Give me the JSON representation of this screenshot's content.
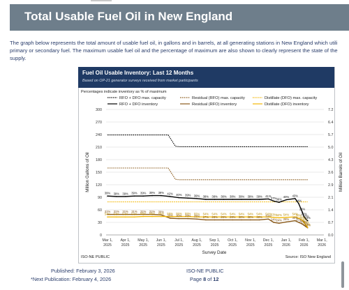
{
  "page": {
    "title": "Total Usable Fuel Oil in New England",
    "description_lines": [
      "The graph below represents the total amount of usable fuel oil, in gallons and in barrels, at all generating stations in New England which utili",
      "primary or secondary fuel. The maximum usable fuel oil and the percentage of maximum are also shown to clearly represent the state of the",
      "supply."
    ],
    "footer": {
      "published_label": "Published:",
      "published_date": "February 3, 2026",
      "next_label": "*Next Publication:",
      "next_date": "February 4, 2026",
      "center_line1": "ISO-NE PUBLIC",
      "center_line2_prefix": "Page ",
      "page_number": "8",
      "center_line2_mid": " of ",
      "page_total": "12"
    }
  },
  "colors": {
    "banner": "#6e7e8b",
    "chart_header": "#1f3a64",
    "text_blue": "#2a3d6b",
    "rfo_dfo": "#000000",
    "residual": "#8a5a1a",
    "distillate": "#f2b705"
  },
  "chart_data": {
    "type": "line",
    "title": "Fuel Oil Usable Inventory: Last 12 Months",
    "subtitle": "Based on OP-21 generator surveys received from market participants",
    "note": "Percentages indicate inventory as % of maximum",
    "xlabel": "Survey Date",
    "ylabel": "Million Gallons of Oil",
    "y2label": "Million Barrels of Oil",
    "ylim": [
      0,
      300
    ],
    "y2lim": [
      0.0,
      7.2
    ],
    "yticks": [
      "0",
      "30",
      "60",
      "90",
      "120",
      "150",
      "180",
      "210",
      "240",
      "270",
      "300"
    ],
    "y2ticks": [
      "0.0",
      "0.7",
      "1.4",
      "2.1",
      "2.9",
      "3.6",
      "4.3",
      "5.0",
      "5.7",
      "6.4",
      "7.2"
    ],
    "xticks": [
      [
        "Mar 1,",
        "2025"
      ],
      [
        "Apr 1,",
        "2025"
      ],
      [
        "May 1,",
        "2025"
      ],
      [
        "Jun 1,",
        "2025"
      ],
      [
        "Jul 1,",
        "2025"
      ],
      [
        "Aug 1,",
        "2025"
      ],
      [
        "Sep 1,",
        "2025"
      ],
      [
        "Oct 1,",
        "2025"
      ],
      [
        "Nov 1,",
        "2025"
      ],
      [
        "Dec 1,",
        "2025"
      ],
      [
        "Jan 1,",
        "2026"
      ],
      [
        "Feb 1,",
        "2026"
      ],
      [
        "Mar 1,",
        "2026"
      ]
    ],
    "legend": [
      {
        "name": "RFO + DFO max. capacity",
        "color": "#000000",
        "dash": true
      },
      {
        "name": "Residual (RFO) max. capacity",
        "color": "#8a5a1a",
        "dash": true
      },
      {
        "name": "Distillate (DFO) max. capacity",
        "color": "#f2b705",
        "dash": true
      },
      {
        "name": "RFO + DFO inventory",
        "color": "#000000",
        "dash": false
      },
      {
        "name": "Residual (RFO) inventory",
        "color": "#8a5a1a",
        "dash": false
      },
      {
        "name": "Distillate (DFO) inventory",
        "color": "#f2b705",
        "dash": false
      }
    ],
    "legend_position": "top",
    "footer_left": "ISO-NE PUBLIC",
    "source": "Source: ISO New England",
    "series": [
      {
        "name": "RFO + DFO max. capacity",
        "color": "#000000",
        "dash": true,
        "x": [
          0,
          1,
          2,
          3,
          3.4,
          3.8,
          4,
          5,
          6,
          7,
          8,
          9,
          10,
          11,
          11.2
        ],
        "y": [
          239,
          239,
          239,
          239,
          239,
          212,
          211,
          211,
          211,
          211,
          211,
          211,
          211,
          211,
          211
        ]
      },
      {
        "name": "Residual (RFO) max. capacity",
        "color": "#8a5a1a",
        "dash": true,
        "x": [
          0,
          1,
          2,
          3,
          3.4,
          3.8,
          4,
          5,
          6,
          7,
          8,
          9,
          10,
          11,
          11.2
        ],
        "y": [
          160,
          160,
          160,
          160,
          160,
          133,
          132,
          132,
          132,
          132,
          132,
          132,
          132,
          132,
          132
        ]
      },
      {
        "name": "Distillate (DFO) max. capacity",
        "color": "#f2b705",
        "dash": true,
        "x": [
          0,
          1,
          2,
          3,
          4,
          5,
          6,
          7,
          8,
          9,
          10,
          11,
          11.2
        ],
        "y": [
          79,
          79,
          79,
          79,
          79,
          79,
          79,
          79,
          79,
          79,
          79,
          79,
          79
        ]
      },
      {
        "name": "RFO + DFO inventory",
        "color": "#000000",
        "dash": false,
        "x": [
          0,
          0.5,
          1,
          1.5,
          2,
          2.5,
          3,
          3.5,
          4,
          4.5,
          5,
          5.5,
          6,
          6.5,
          7,
          7.5,
          8,
          8.5,
          9,
          9.3,
          9.6,
          10,
          10.5,
          10.7,
          10.9,
          11,
          11.1,
          11.2
        ],
        "y": [
          93,
          92,
          92,
          93,
          93,
          94,
          94,
          92,
          89,
          88,
          87,
          85,
          85,
          85,
          85,
          85,
          85,
          85,
          86,
          81,
          78,
          84,
          87,
          75,
          55,
          43,
          38,
          34
        ]
      },
      {
        "name": "Residual (RFO) inventory",
        "color": "#8a5a1a",
        "dash": false,
        "x": [
          0,
          0.5,
          1,
          1.5,
          2,
          2.5,
          3,
          3.5,
          4,
          4.5,
          5,
          5.5,
          6,
          6.5,
          7,
          7.5,
          8,
          8.5,
          9,
          9.3,
          9.6,
          10,
          10.5,
          10.7,
          10.9,
          11,
          11.1,
          11.2
        ],
        "y": [
          49,
          49,
          49,
          49,
          49,
          49,
          48,
          40,
          39,
          39,
          38,
          36,
          36,
          36,
          36,
          36,
          36,
          36,
          38,
          30,
          28,
          31,
          34,
          30,
          26,
          23,
          20,
          17
        ]
      },
      {
        "name": "Distillate (DFO) inventory",
        "color": "#f2b705",
        "dash": false,
        "x": [
          0,
          0.5,
          1,
          1.5,
          2,
          2.5,
          3,
          3.5,
          4,
          4.5,
          5,
          5.5,
          6,
          6.5,
          7,
          7.5,
          8,
          8.5,
          9,
          9.3,
          9.6,
          10,
          10.5,
          10.7,
          10.9,
          11,
          11.1,
          11.2
        ],
        "y": [
          43,
          43,
          43,
          43,
          44,
          44,
          44,
          44,
          44,
          44,
          43,
          43,
          43,
          43,
          43,
          43,
          43,
          43,
          43,
          42,
          41,
          42,
          43,
          40,
          35,
          30,
          24,
          18
        ]
      }
    ],
    "annotations": [
      {
        "series": "RFO + DFO inventory",
        "labels": [
          {
            "x": 0,
            "y": 93,
            "text": "39%"
          },
          {
            "x": 0.5,
            "y": 92,
            "text": "39%"
          },
          {
            "x": 1,
            "y": 92,
            "text": "39%"
          },
          {
            "x": 1.5,
            "y": 93,
            "text": "39%"
          },
          {
            "x": 2,
            "y": 93,
            "text": "39%"
          },
          {
            "x": 2.5,
            "y": 94,
            "text": "39%"
          },
          {
            "x": 3,
            "y": 94,
            "text": "39%"
          },
          {
            "x": 3.5,
            "y": 92,
            "text": "42%"
          },
          {
            "x": 4,
            "y": 89,
            "text": "40%"
          },
          {
            "x": 4.5,
            "y": 88,
            "text": "39%"
          },
          {
            "x": 5,
            "y": 87,
            "text": "39%"
          },
          {
            "x": 5.5,
            "y": 85,
            "text": "38%"
          },
          {
            "x": 6,
            "y": 85,
            "text": "38%"
          },
          {
            "x": 6.5,
            "y": 85,
            "text": "38%"
          },
          {
            "x": 7,
            "y": 85,
            "text": "38%"
          },
          {
            "x": 7.5,
            "y": 85,
            "text": "39%"
          },
          {
            "x": 8,
            "y": 85,
            "text": "39%"
          },
          {
            "x": 8.5,
            "y": 85,
            "text": "39%"
          },
          {
            "x": 9,
            "y": 86,
            "text": "41%"
          },
          {
            "x": 9.3,
            "y": 81,
            "text": "37%"
          },
          {
            "x": 9.6,
            "y": 78,
            "text": "36%"
          },
          {
            "x": 10,
            "y": 84,
            "text": "40%"
          },
          {
            "x": 10.5,
            "y": 87,
            "text": "43%"
          },
          {
            "x": 10.7,
            "y": 75,
            "text": "34%"
          },
          {
            "x": 10.9,
            "y": 55,
            "text": "26%"
          },
          {
            "x": 11,
            "y": 43,
            "text": "20%"
          },
          {
            "x": 11.1,
            "y": 38,
            "text": "18%"
          },
          {
            "x": 11.2,
            "y": 34,
            "text": "16%"
          }
        ]
      },
      {
        "series": "Residual (RFO) inventory",
        "labels": [
          {
            "x": 0,
            "y": 49,
            "text": "31%"
          },
          {
            "x": 0.5,
            "y": 49,
            "text": "31%"
          },
          {
            "x": 1,
            "y": 49,
            "text": "31%"
          },
          {
            "x": 1.5,
            "y": 49,
            "text": "31%"
          },
          {
            "x": 2,
            "y": 49,
            "text": "31%"
          },
          {
            "x": 2.5,
            "y": 49,
            "text": "31%"
          },
          {
            "x": 3,
            "y": 48,
            "text": "30%"
          },
          {
            "x": 3.5,
            "y": 40,
            "text": "30%"
          },
          {
            "x": 4,
            "y": 39,
            "text": "30%"
          },
          {
            "x": 4.5,
            "y": 39,
            "text": "29%"
          },
          {
            "x": 5,
            "y": 38,
            "text": "29%"
          },
          {
            "x": 5.5,
            "y": 36,
            "text": "27%"
          },
          {
            "x": 6,
            "y": 36,
            "text": "28%"
          },
          {
            "x": 6.5,
            "y": 36,
            "text": "29%"
          },
          {
            "x": 7,
            "y": 36,
            "text": "29%"
          },
          {
            "x": 7.5,
            "y": 36,
            "text": "30%"
          },
          {
            "x": 8,
            "y": 36,
            "text": "30%"
          },
          {
            "x": 8.5,
            "y": 36,
            "text": "30%"
          },
          {
            "x": 9,
            "y": 38,
            "text": "33%"
          },
          {
            "x": 9.3,
            "y": 30,
            "text": "24%"
          },
          {
            "x": 9.6,
            "y": 28,
            "text": "24%"
          },
          {
            "x": 10,
            "y": 31,
            "text": "28%"
          },
          {
            "x": 10.5,
            "y": 34,
            "text": "30%"
          },
          {
            "x": 10.7,
            "y": 30,
            "text": "25%"
          },
          {
            "x": 10.9,
            "y": 26,
            "text": "20%"
          },
          {
            "x": 11,
            "y": 23,
            "text": "17%"
          },
          {
            "x": 11.1,
            "y": 20,
            "text": "15%"
          },
          {
            "x": 11.2,
            "y": 17,
            "text": "13%"
          }
        ]
      },
      {
        "series": "Distillate (DFO) inventory",
        "labels": [
          {
            "x": 0,
            "y": 43,
            "text": "54%"
          },
          {
            "x": 0.5,
            "y": 43,
            "text": "54%"
          },
          {
            "x": 1,
            "y": 43,
            "text": "54%"
          },
          {
            "x": 1.5,
            "y": 43,
            "text": "54%"
          },
          {
            "x": 2,
            "y": 44,
            "text": "55%"
          },
          {
            "x": 2.5,
            "y": 44,
            "text": "55%"
          },
          {
            "x": 3,
            "y": 44,
            "text": "55%"
          },
          {
            "x": 3.5,
            "y": 44,
            "text": "55%"
          },
          {
            "x": 4,
            "y": 44,
            "text": "55%"
          },
          {
            "x": 4.5,
            "y": 44,
            "text": "55%"
          },
          {
            "x": 5,
            "y": 43,
            "text": "55%"
          },
          {
            "x": 5.5,
            "y": 43,
            "text": "54%"
          },
          {
            "x": 6,
            "y": 43,
            "text": "54%"
          },
          {
            "x": 6.5,
            "y": 43,
            "text": "54%"
          },
          {
            "x": 7,
            "y": 43,
            "text": "54%"
          },
          {
            "x": 7.5,
            "y": 43,
            "text": "54%"
          },
          {
            "x": 8,
            "y": 43,
            "text": "54%"
          },
          {
            "x": 8.5,
            "y": 43,
            "text": "54%"
          },
          {
            "x": 9,
            "y": 43,
            "text": "54%"
          },
          {
            "x": 9.3,
            "y": 42,
            "text": "53%"
          },
          {
            "x": 9.6,
            "y": 41,
            "text": "52%"
          },
          {
            "x": 10,
            "y": 42,
            "text": "54%"
          },
          {
            "x": 10.5,
            "y": 43,
            "text": "54%"
          },
          {
            "x": 10.7,
            "y": 40,
            "text": "50%"
          },
          {
            "x": 10.9,
            "y": 35,
            "text": "44%"
          },
          {
            "x": 11,
            "y": 30,
            "text": "38%"
          },
          {
            "x": 11.1,
            "y": 24,
            "text": "30%"
          },
          {
            "x": 11.2,
            "y": 18,
            "text": "22%"
          }
        ]
      }
    ]
  }
}
